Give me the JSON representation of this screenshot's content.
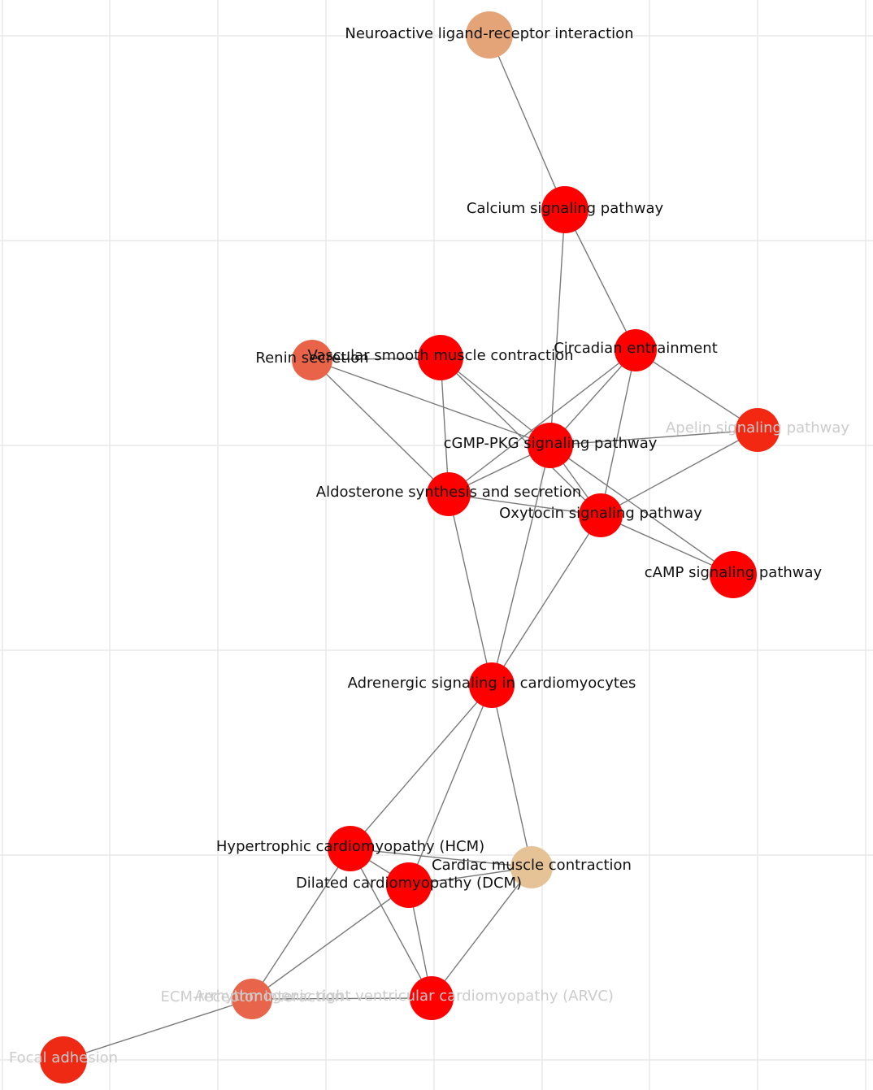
{
  "nodes": [
    {
      "id": "neuroactive",
      "label": "Neuroactive ligand-receptor interaction",
      "color": "#e5a378",
      "label_color": "#111111"
    },
    {
      "id": "calcium",
      "label": "Calcium signaling pathway",
      "color": "#ff0000",
      "label_color": "#111111"
    },
    {
      "id": "renin",
      "label": "Renin secretion",
      "color": "#e86347",
      "label_color": "#111111"
    },
    {
      "id": "vascular",
      "label": "Vascular smooth muscle contraction",
      "color": "#ff0000",
      "label_color": "#111111"
    },
    {
      "id": "circadian",
      "label": "Circadian entrainment",
      "color": "#ff0000",
      "label_color": "#111111"
    },
    {
      "id": "apelin",
      "label": "Apelin signaling pathway",
      "color": "#f22812",
      "label_color": "#cccccc"
    },
    {
      "id": "cgmp",
      "label": "cGMP-PKG signaling pathway",
      "color": "#ff0000",
      "label_color": "#111111"
    },
    {
      "id": "aldosterone",
      "label": "Aldosterone synthesis and secretion",
      "color": "#ff0000",
      "label_color": "#111111"
    },
    {
      "id": "oxytocin",
      "label": "Oxytocin signaling pathway",
      "color": "#ff0000",
      "label_color": "#111111"
    },
    {
      "id": "camp",
      "label": "cAMP signaling pathway",
      "color": "#ff0000",
      "label_color": "#111111"
    },
    {
      "id": "adrenergic",
      "label": "Adrenergic signaling in cardiomyocytes",
      "color": "#ff0000",
      "label_color": "#111111"
    },
    {
      "id": "hcm",
      "label": "Hypertrophic cardiomyopathy (HCM)",
      "color": "#ff0000",
      "label_color": "#111111"
    },
    {
      "id": "cardiac",
      "label": "Cardiac muscle contraction",
      "color": "#e5c396",
      "label_color": "#111111"
    },
    {
      "id": "dcm",
      "label": "Dilated cardiomyopathy (DCM)",
      "color": "#ff0000",
      "label_color": "#111111"
    },
    {
      "id": "ecm",
      "label": "ECM-receptor interaction",
      "color": "#e8644b",
      "label_color": "#cccccc"
    },
    {
      "id": "arvc",
      "label": "Arrhythmogenic right ventricular cardiomyopathy (ARVC)",
      "color": "#ff0000",
      "label_color": "#cccccc"
    },
    {
      "id": "focal",
      "label": "Focal adhesion",
      "color": "#ee2a15",
      "label_color": "#cccccc"
    }
  ],
  "edges": [
    [
      "neuroactive",
      "calcium"
    ],
    [
      "calcium",
      "circadian"
    ],
    [
      "calcium",
      "cgmp"
    ],
    [
      "renin",
      "vascular"
    ],
    [
      "renin",
      "cgmp"
    ],
    [
      "renin",
      "aldosterone"
    ],
    [
      "vascular",
      "cgmp"
    ],
    [
      "vascular",
      "aldosterone"
    ],
    [
      "vascular",
      "oxytocin"
    ],
    [
      "circadian",
      "apelin"
    ],
    [
      "circadian",
      "cgmp"
    ],
    [
      "circadian",
      "aldosterone"
    ],
    [
      "circadian",
      "oxytocin"
    ],
    [
      "apelin",
      "cgmp"
    ],
    [
      "apelin",
      "oxytocin"
    ],
    [
      "cgmp",
      "aldosterone"
    ],
    [
      "cgmp",
      "oxytocin"
    ],
    [
      "cgmp",
      "camp"
    ],
    [
      "cgmp",
      "adrenergic"
    ],
    [
      "aldosterone",
      "oxytocin"
    ],
    [
      "aldosterone",
      "adrenergic"
    ],
    [
      "oxytocin",
      "camp"
    ],
    [
      "oxytocin",
      "adrenergic"
    ],
    [
      "adrenergic",
      "hcm"
    ],
    [
      "adrenergic",
      "dcm"
    ],
    [
      "adrenergic",
      "cardiac"
    ],
    [
      "hcm",
      "dcm"
    ],
    [
      "hcm",
      "cardiac"
    ],
    [
      "hcm",
      "ecm"
    ],
    [
      "hcm",
      "arvc"
    ],
    [
      "dcm",
      "cardiac"
    ],
    [
      "dcm",
      "ecm"
    ],
    [
      "dcm",
      "arvc"
    ],
    [
      "cardiac",
      "arvc"
    ],
    [
      "ecm",
      "arvc"
    ],
    [
      "ecm",
      "focal"
    ]
  ]
}
